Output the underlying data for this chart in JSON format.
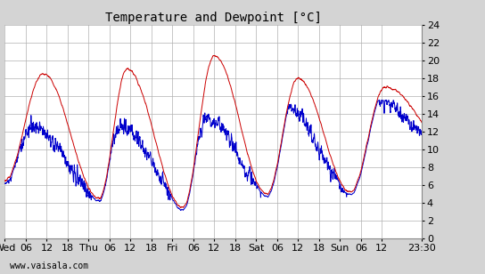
{
  "title": "Temperature and Dewpoint [°C]",
  "watermark": "www.vaisala.com",
  "ylim": [
    0,
    24
  ],
  "yticks": [
    0,
    2,
    4,
    6,
    8,
    10,
    12,
    14,
    16,
    18,
    20,
    22,
    24
  ],
  "xtick_positions": [
    0,
    6,
    12,
    18,
    24,
    30,
    36,
    42,
    48,
    54,
    60,
    66,
    72,
    78,
    84,
    90,
    96,
    102,
    108,
    119.5
  ],
  "xtick_labels": [
    "Wed",
    "06",
    "12",
    "18",
    "Thu",
    "06",
    "12",
    "18",
    "Fri",
    "06",
    "12",
    "18",
    "Sat",
    "06",
    "12",
    "18",
    "Sun",
    "06",
    "12",
    "23:30"
  ],
  "total_hours": 119.5,
  "temp_color": "#cc0000",
  "dewpoint_color": "#0000cc",
  "background_color": "#d4d4d4",
  "plot_bg_color": "#ffffff",
  "grid_color": "#b0b0b0",
  "title_fontsize": 10,
  "tick_fontsize": 8,
  "watermark_fontsize": 7,
  "line_width": 0.7
}
